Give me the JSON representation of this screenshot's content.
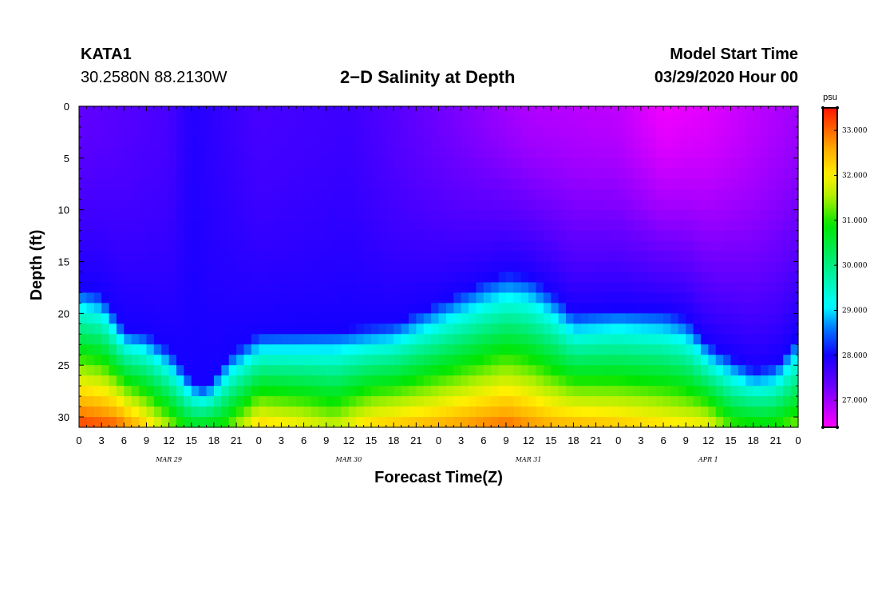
{
  "header": {
    "station": "KATA1",
    "coordinates": "30.2580N 88.2130W",
    "title": "2−D Salinity at Depth",
    "start_label": "Model Start Time",
    "start_value": "03/29/2020 Hour 00"
  },
  "chart_data": {
    "type": "heatmap",
    "title": "2−D Salinity at Depth",
    "xlabel": "Forecast Time(Z)",
    "ylabel": "Depth (ft)",
    "x_range_hours": [
      0,
      96
    ],
    "y_range_ft": [
      0,
      31
    ],
    "y_inverted": true,
    "x_tick_labels": [
      "0",
      "3",
      "6",
      "9",
      "12",
      "15",
      "18",
      "21",
      "0",
      "3",
      "6",
      "9",
      "12",
      "15",
      "18",
      "21",
      "0",
      "3",
      "6",
      "9",
      "12",
      "15",
      "18",
      "21",
      "0",
      "3",
      "6",
      "9",
      "12",
      "15",
      "18",
      "21",
      "0"
    ],
    "y_ticks": [
      0,
      5,
      10,
      15,
      20,
      25,
      30
    ],
    "day_labels": [
      {
        "text": "MAR 29",
        "hour": 12
      },
      {
        "text": "MAR 30",
        "hour": 36
      },
      {
        "text": "MAR 31",
        "hour": 60
      },
      {
        "text": "APR 1",
        "hour": 84
      }
    ],
    "colorbar": {
      "unit": "psu",
      "min": 26.4,
      "max": 33.5,
      "tick_values": [
        27.0,
        28.0,
        29.0,
        30.0,
        31.0,
        32.0,
        33.0
      ],
      "tick_labels": [
        "27.000",
        "28.000",
        "29.000",
        "30.000",
        "31.000",
        "32.000",
        "33.000"
      ]
    },
    "halocline_depth_ft": [
      {
        "hour": 0,
        "depth": 17.5
      },
      {
        "hour": 3,
        "depth": 18.2
      },
      {
        "hour": 6,
        "depth": 21.5
      },
      {
        "hour": 9,
        "depth": 22.0
      },
      {
        "hour": 12,
        "depth": 23.5
      },
      {
        "hour": 15,
        "depth": 26.5
      },
      {
        "hour": 17,
        "depth": 27.2
      },
      {
        "hour": 20,
        "depth": 24.0
      },
      {
        "hour": 24,
        "depth": 22.0
      },
      {
        "hour": 30,
        "depth": 21.8
      },
      {
        "hour": 36,
        "depth": 21.5
      },
      {
        "hour": 42,
        "depth": 21.0
      },
      {
        "hour": 48,
        "depth": 19.0
      },
      {
        "hour": 54,
        "depth": 17.0
      },
      {
        "hour": 57,
        "depth": 16.2
      },
      {
        "hour": 60,
        "depth": 16.5
      },
      {
        "hour": 63,
        "depth": 18.0
      },
      {
        "hour": 66,
        "depth": 20.0
      },
      {
        "hour": 72,
        "depth": 19.5
      },
      {
        "hour": 78,
        "depth": 19.8
      },
      {
        "hour": 81,
        "depth": 20.5
      },
      {
        "hour": 84,
        "depth": 23.0
      },
      {
        "hour": 90,
        "depth": 25.5
      },
      {
        "hour": 93,
        "depth": 25.0
      },
      {
        "hour": 96,
        "depth": 22.0
      }
    ],
    "surface_salinity_psu": [
      {
        "hour": 0,
        "value": 27.4
      },
      {
        "hour": 12,
        "value": 27.6
      },
      {
        "hour": 15,
        "value": 27.9
      },
      {
        "hour": 24,
        "value": 27.6
      },
      {
        "hour": 36,
        "value": 27.7
      },
      {
        "hour": 48,
        "value": 27.3
      },
      {
        "hour": 60,
        "value": 26.9
      },
      {
        "hour": 72,
        "value": 26.8
      },
      {
        "hour": 78,
        "value": 26.5
      },
      {
        "hour": 84,
        "value": 26.6
      },
      {
        "hour": 96,
        "value": 27.0
      }
    ],
    "bottom_salinity_psu": [
      {
        "hour": 0,
        "value": 33.3
      },
      {
        "hour": 5,
        "value": 33.1
      },
      {
        "hour": 9,
        "value": 32.3
      },
      {
        "hour": 15,
        "value": 30.8
      },
      {
        "hour": 19,
        "value": 31.0
      },
      {
        "hour": 24,
        "value": 32.3
      },
      {
        "hour": 30,
        "value": 32.0
      },
      {
        "hour": 34,
        "value": 31.7
      },
      {
        "hour": 39,
        "value": 32.3
      },
      {
        "hour": 48,
        "value": 32.6
      },
      {
        "hour": 57,
        "value": 33.0
      },
      {
        "hour": 63,
        "value": 32.6
      },
      {
        "hour": 72,
        "value": 32.4
      },
      {
        "hour": 84,
        "value": 32.0
      },
      {
        "hour": 87,
        "value": 31.2
      },
      {
        "hour": 92,
        "value": 31.0
      },
      {
        "hour": 96,
        "value": 31.4
      }
    ]
  }
}
